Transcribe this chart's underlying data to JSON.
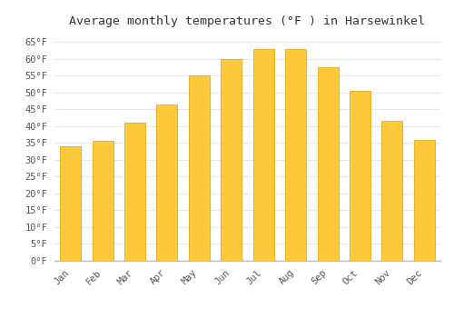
{
  "title": "Average monthly temperatures (°F ) in Harsewinkel",
  "months": [
    "Jan",
    "Feb",
    "Mar",
    "Apr",
    "May",
    "Jun",
    "Jul",
    "Aug",
    "Sep",
    "Oct",
    "Nov",
    "Dec"
  ],
  "values": [
    34,
    35.5,
    41,
    46.5,
    55,
    60,
    63,
    63,
    57.5,
    50.5,
    41.5,
    36
  ],
  "bar_color_top": "#FFC93C",
  "bar_color_bottom": "#FFAA00",
  "bar_edge_color": "#E89A00",
  "ylim": [
    0,
    68
  ],
  "yticks": [
    0,
    5,
    10,
    15,
    20,
    25,
    30,
    35,
    40,
    45,
    50,
    55,
    60,
    65
  ],
  "ytick_labels": [
    "0°F",
    "5°F",
    "10°F",
    "15°F",
    "20°F",
    "25°F",
    "30°F",
    "35°F",
    "40°F",
    "45°F",
    "50°F",
    "55°F",
    "60°F",
    "65°F"
  ],
  "background_color": "#FFFFFF",
  "grid_color": "#E8E8E8",
  "title_fontsize": 9.5,
  "tick_fontsize": 7.5,
  "font_family": "monospace",
  "bar_width": 0.65
}
